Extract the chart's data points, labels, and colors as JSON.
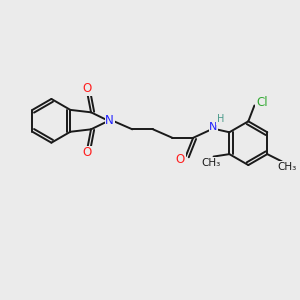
{
  "background_color": "#ebebeb",
  "bond_color": "#1a1a1a",
  "N_color": "#2020ff",
  "O_color": "#ff2020",
  "Cl_color": "#33aa33",
  "H_color": "#4a9a8a",
  "figsize": [
    3.0,
    3.0
  ],
  "dpi": 100,
  "xlim": [
    0,
    12
  ],
  "ylim": [
    0,
    12
  ]
}
